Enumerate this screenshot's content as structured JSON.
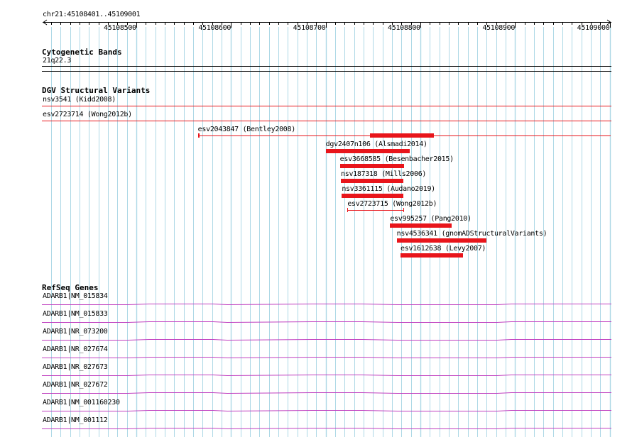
{
  "ruler": {
    "region_label": "chr21:45108401..45109001",
    "start": 45108401,
    "end": 45109001,
    "ticks": [
      {
        "value": 45108500,
        "label": "45108500"
      },
      {
        "value": 45108600,
        "label": "45108600"
      },
      {
        "value": 45108700,
        "label": "45108700"
      },
      {
        "value": 45108800,
        "label": "45108800"
      },
      {
        "value": 45108900,
        "label": "45108900"
      },
      {
        "value": 45109000,
        "label": "45109000"
      }
    ]
  },
  "tracks": {
    "cyto": {
      "title": "Cytogenetic Bands",
      "band": "21q22.3"
    },
    "dgv": {
      "title": "DGV Structural Variants",
      "features": [
        {
          "label": "nsv3541 (Kidd2008)",
          "start": 45108401,
          "end": 45109001,
          "style": "line"
        },
        {
          "label": "esv2723714 (Wong2012b)",
          "start": 45108401,
          "end": 45109001,
          "style": "line"
        },
        {
          "label": "esv2043847 (Bentley2008)",
          "start": 45108565,
          "end": 45109001,
          "style": "line-tick"
        },
        {
          "label": "dgv2407n106 (Alsmadi2014)",
          "start": 45108700,
          "end": 45108789,
          "style": "bar"
        },
        {
          "label": "esv3668585 (Besenbacher2015)",
          "start": 45108715,
          "end": 45108783,
          "style": "bar"
        },
        {
          "label": "nsv187318 (Mills2006)",
          "start": 45108716,
          "end": 45108782,
          "style": "bar"
        },
        {
          "label": "nsv3361115 (Audano2019)",
          "start": 45108717,
          "end": 45108782,
          "style": "bar"
        },
        {
          "label": "esv2723715 (Wong2012b)",
          "start": 45108723,
          "end": 45108782,
          "style": "thin"
        },
        {
          "label": "esv995257 (Pang2010)",
          "start": 45108768,
          "end": 45108833,
          "style": "bar"
        },
        {
          "label": "nsv4536341 (gnomADStructuralVariants)",
          "start": 45108775,
          "end": 45108870,
          "style": "bar"
        },
        {
          "label": "esv1612638 (Levy2007)",
          "start": 45108779,
          "end": 45108845,
          "style": "bar"
        }
      ],
      "extra_block": {
        "start": 45108747,
        "end": 45108814
      }
    },
    "refseq": {
      "title": "RefSeq Genes",
      "genes": [
        "ADARB1|NM_015834",
        "ADARB1|NM_015833",
        "ADARB1|NR_073200",
        "ADARB1|NR_027674",
        "ADARB1|NR_027673",
        "ADARB1|NR_027672",
        "ADARB1|NM_001160230",
        "ADARB1|NM_001112"
      ]
    }
  },
  "colors": {
    "grid": "#add8e6",
    "variant": "#e8151b",
    "gene": "#c040c0",
    "separator": "#000000"
  }
}
